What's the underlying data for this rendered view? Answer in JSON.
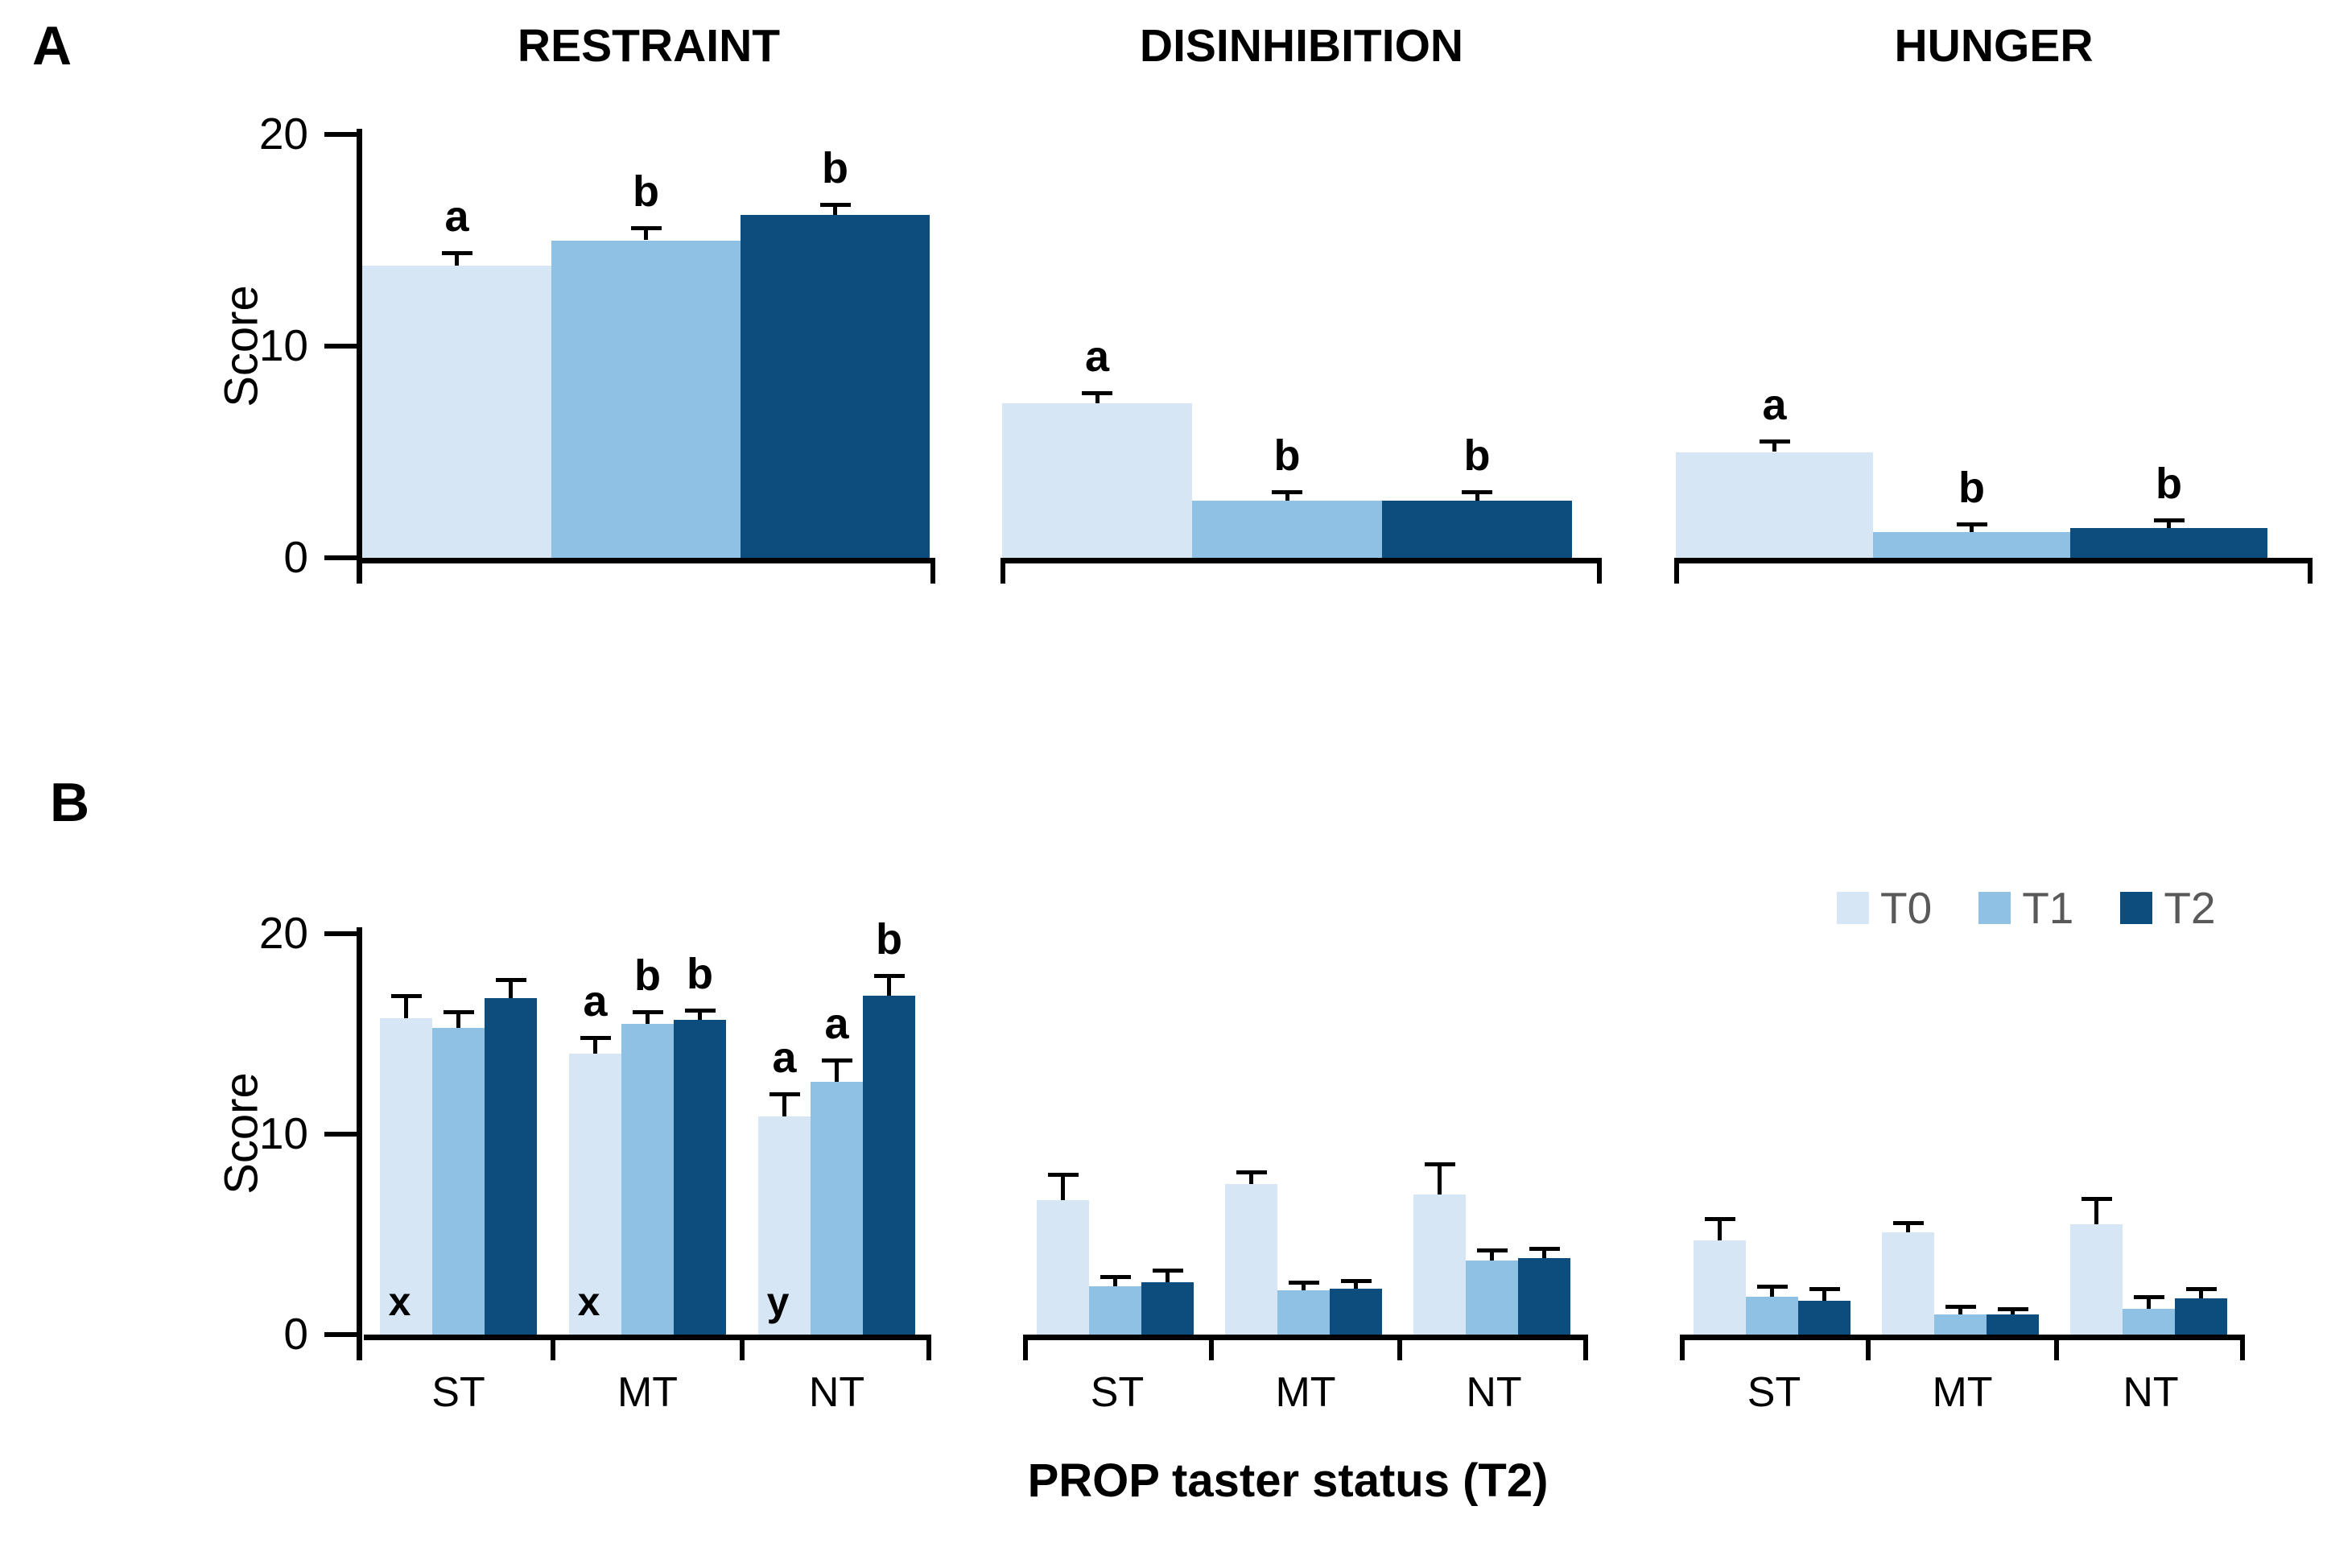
{
  "colors": {
    "series": {
      "T0": "#d7e6f4",
      "T1": "#8fc1e5",
      "T2": "#0d4d7e"
    },
    "axis": "#000000",
    "text": "#000000",
    "legend_text": "#595959"
  },
  "chart_data": [
    {
      "id": "panel_a",
      "panel_label": "A",
      "type": "bar",
      "ylabel": "Score",
      "ylim": [
        0,
        20
      ],
      "yticks": [
        0,
        10,
        20
      ],
      "grid": false,
      "series_names": [
        "T0",
        "T1",
        "T2"
      ],
      "subplots": [
        {
          "title": "RESTRAINT",
          "series": [
            {
              "name": "T0",
              "values": [
                13.8
              ],
              "errors": [
                0.6
              ]
            },
            {
              "name": "T1",
              "values": [
                15.0
              ],
              "errors": [
                0.6
              ]
            },
            {
              "name": "T2",
              "values": [
                16.2
              ],
              "errors": [
                0.5
              ]
            }
          ],
          "sig_letters": [
            [
              "a",
              "b",
              "b"
            ]
          ]
        },
        {
          "title": "DISINHIBITION",
          "series": [
            {
              "name": "T0",
              "values": [
                7.3
              ],
              "errors": [
                0.5
              ]
            },
            {
              "name": "T1",
              "values": [
                2.7
              ],
              "errors": [
                0.4
              ]
            },
            {
              "name": "T2",
              "values": [
                2.7
              ],
              "errors": [
                0.4
              ]
            }
          ],
          "sig_letters": [
            [
              "a",
              "b",
              "b"
            ]
          ]
        },
        {
          "title": "HUNGER",
          "series": [
            {
              "name": "T0",
              "values": [
                5.0
              ],
              "errors": [
                0.5
              ]
            },
            {
              "name": "T1",
              "values": [
                1.2
              ],
              "errors": [
                0.4
              ]
            },
            {
              "name": "T2",
              "values": [
                1.4
              ],
              "errors": [
                0.4
              ]
            }
          ],
          "sig_letters": [
            [
              "a",
              "b",
              "b"
            ]
          ]
        }
      ]
    },
    {
      "id": "panel_b",
      "panel_label": "B",
      "type": "bar",
      "xlabel": "PROP taster status (T2)",
      "ylabel": "Score",
      "ylim": [
        0,
        20
      ],
      "yticks": [
        0,
        10,
        20
      ],
      "grid": false,
      "categories": [
        "ST",
        "MT",
        "NT"
      ],
      "series_names": [
        "T0",
        "T1",
        "T2"
      ],
      "legend": {
        "entries": [
          "T0",
          "T1",
          "T2"
        ],
        "position": "top-right"
      },
      "subplots": [
        {
          "title": "RESTRAINT",
          "series": [
            {
              "name": "T0",
              "values": [
                15.8,
                14.0,
                10.9
              ],
              "errors": [
                1.1,
                0.8,
                1.1
              ]
            },
            {
              "name": "T1",
              "values": [
                15.3,
                15.5,
                12.6
              ],
              "errors": [
                0.8,
                0.6,
                1.1
              ]
            },
            {
              "name": "T2",
              "values": [
                16.8,
                15.7,
                16.9
              ],
              "errors": [
                0.9,
                0.5,
                1.0
              ]
            }
          ],
          "sig_letters": [
            [
              "",
              "",
              ""
            ],
            [
              "a",
              "b",
              "b"
            ],
            [
              "a",
              "a",
              "b"
            ]
          ],
          "base_letters": [
            "x",
            "x",
            "y"
          ]
        },
        {
          "title": "DISINHIBITION",
          "series": [
            {
              "name": "T0",
              "values": [
                6.7,
                7.5,
                7.0
              ],
              "errors": [
                1.3,
                0.6,
                1.5
              ]
            },
            {
              "name": "T1",
              "values": [
                2.4,
                2.2,
                3.7
              ],
              "errors": [
                0.5,
                0.4,
                0.5
              ]
            },
            {
              "name": "T2",
              "values": [
                2.6,
                2.3,
                3.8
              ],
              "errors": [
                0.6,
                0.4,
                0.5
              ]
            }
          ],
          "sig_letters": [
            [
              "",
              "",
              ""
            ],
            [
              "",
              "",
              ""
            ],
            [
              "",
              "",
              ""
            ]
          ],
          "base_letters": [
            "",
            "",
            ""
          ]
        },
        {
          "title": "HUNGER",
          "series": [
            {
              "name": "T0",
              "values": [
                4.7,
                5.1,
                5.5
              ],
              "errors": [
                1.1,
                0.5,
                1.3
              ]
            },
            {
              "name": "T1",
              "values": [
                1.9,
                1.0,
                1.3
              ],
              "errors": [
                0.5,
                0.4,
                0.6
              ]
            },
            {
              "name": "T2",
              "values": [
                1.7,
                1.0,
                1.8
              ],
              "errors": [
                0.6,
                0.3,
                0.5
              ]
            }
          ],
          "sig_letters": [
            [
              "",
              "",
              ""
            ],
            [
              "",
              "",
              ""
            ],
            [
              "",
              "",
              ""
            ]
          ],
          "base_letters": [
            "",
            "",
            ""
          ]
        }
      ]
    }
  ]
}
